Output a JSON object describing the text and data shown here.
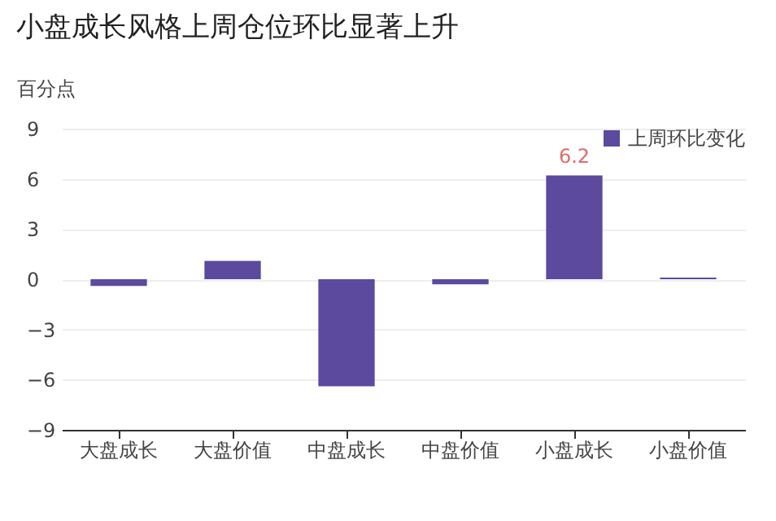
{
  "chart_data": {
    "type": "bar",
    "title": "小盘成长风格上周仓位环比显著上升",
    "ylabel": "百分点",
    "categories": [
      "大盘成长",
      "大盘价值",
      "中盘成长",
      "中盘价值",
      "小盘成长",
      "小盘价值"
    ],
    "series": [
      {
        "name": "上周环比变化",
        "color": "#5b4a9e",
        "values": [
          -0.4,
          1.1,
          -6.4,
          -0.3,
          6.2,
          0.1
        ],
        "value_labels": [
          null,
          null,
          null,
          null,
          "6.2",
          null
        ]
      }
    ],
    "ylim": [
      -9,
      9
    ],
    "yticks": [
      -9,
      -6,
      -3,
      0,
      3,
      6,
      9
    ],
    "grid": "y",
    "legend": "top right"
  }
}
